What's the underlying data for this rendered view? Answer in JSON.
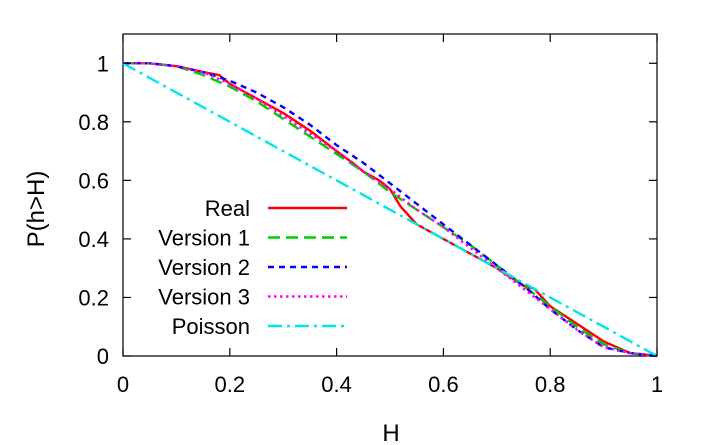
{
  "chart_data": {
    "type": "line",
    "xlabel": "H",
    "ylabel": "P(h>H)",
    "xlim": [
      0,
      1
    ],
    "ylim": [
      0,
      1.1
    ],
    "x_ticks": [
      0,
      0.2,
      0.4,
      0.6,
      0.8,
      1
    ],
    "x_tick_labels": [
      "0",
      "0.2",
      "0.4",
      "0.6",
      "0.8",
      "1"
    ],
    "y_ticks": [
      0,
      0.2,
      0.4,
      0.6,
      0.8,
      1
    ],
    "y_tick_labels": [
      "0",
      "0.2",
      "0.4",
      "0.6",
      "0.8",
      "1"
    ],
    "grid": false,
    "legend_position": "bottom-left",
    "series": [
      {
        "name": "Real",
        "color": "#ff0000",
        "dash": "solid",
        "x": [
          0,
          0.05,
          0.1,
          0.15,
          0.18,
          0.2,
          0.25,
          0.3,
          0.35,
          0.4,
          0.43,
          0.45,
          0.48,
          0.5,
          0.52,
          0.55,
          0.58,
          0.6,
          0.65,
          0.7,
          0.75,
          0.77,
          0.8,
          0.85,
          0.9,
          0.95,
          1
        ],
        "y": [
          1,
          1,
          0.99,
          0.97,
          0.96,
          0.93,
          0.88,
          0.83,
          0.77,
          0.7,
          0.66,
          0.63,
          0.6,
          0.57,
          0.51,
          0.45,
          0.42,
          0.4,
          0.35,
          0.3,
          0.24,
          0.23,
          0.17,
          0.11,
          0.05,
          0.01,
          0
        ]
      },
      {
        "name": "Version 1",
        "color": "#00cc00",
        "dash": "long",
        "x": [
          0,
          0.05,
          0.1,
          0.15,
          0.2,
          0.25,
          0.3,
          0.35,
          0.4,
          0.45,
          0.5,
          0.55,
          0.6,
          0.65,
          0.7,
          0.75,
          0.8,
          0.85,
          0.9,
          0.95,
          1
        ],
        "y": [
          1,
          1,
          0.99,
          0.96,
          0.92,
          0.87,
          0.81,
          0.75,
          0.69,
          0.63,
          0.56,
          0.5,
          0.44,
          0.38,
          0.31,
          0.24,
          0.17,
          0.1,
          0.04,
          0.01,
          0
        ]
      },
      {
        "name": "Version 2",
        "color": "#0000ff",
        "dash": "short",
        "x": [
          0,
          0.05,
          0.1,
          0.15,
          0.2,
          0.25,
          0.3,
          0.35,
          0.4,
          0.45,
          0.5,
          0.55,
          0.6,
          0.65,
          0.7,
          0.75,
          0.8,
          0.85,
          0.9,
          0.95,
          1
        ],
        "y": [
          1,
          1,
          0.99,
          0.97,
          0.94,
          0.9,
          0.85,
          0.79,
          0.72,
          0.66,
          0.59,
          0.52,
          0.45,
          0.38,
          0.31,
          0.24,
          0.16,
          0.09,
          0.03,
          0.01,
          0
        ]
      },
      {
        "name": "Version 3",
        "color": "#ff00ff",
        "dash": "dotted",
        "x": [
          0,
          0.05,
          0.1,
          0.15,
          0.2,
          0.25,
          0.3,
          0.35,
          0.4,
          0.45,
          0.5,
          0.55,
          0.6,
          0.65,
          0.7,
          0.75,
          0.8,
          0.85,
          0.9,
          0.95,
          1
        ],
        "y": [
          1,
          1,
          0.99,
          0.97,
          0.93,
          0.88,
          0.82,
          0.76,
          0.7,
          0.63,
          0.57,
          0.5,
          0.44,
          0.37,
          0.3,
          0.23,
          0.16,
          0.09,
          0.03,
          0.01,
          0
        ]
      },
      {
        "name": "Poisson",
        "color": "#00e5e5",
        "dash": "dashdot",
        "x": [
          0,
          1
        ],
        "y": [
          1,
          0
        ]
      }
    ]
  }
}
